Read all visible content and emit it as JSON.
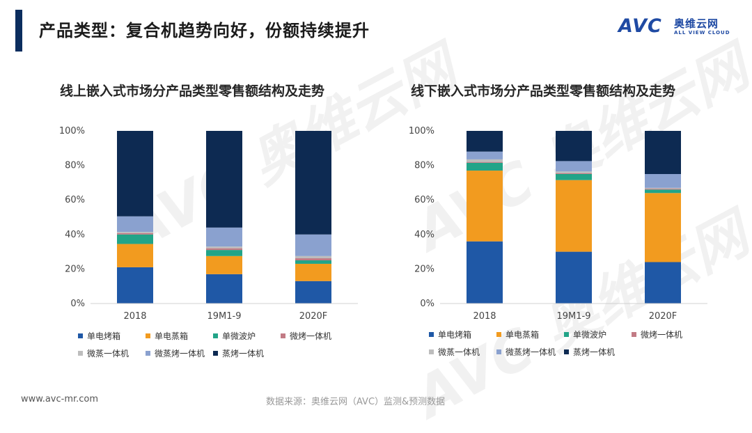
{
  "header": {
    "title": "产品类型：复合机趋势向好，份额持续提升",
    "logo_avc": "AVC",
    "logo_cn": "奥维云网",
    "logo_en": "ALL VIEW CLOUD"
  },
  "colors": {
    "单电烤箱": "#1f58a6",
    "单电蒸箱": "#f29b1f",
    "单微波炉": "#22a488",
    "微烤一体机": "#c27b85",
    "微蒸一体机": "#bdbdbd",
    "微蒸烤一体机": "#8aa1cf",
    "蒸烤一体机": "#0d2a52"
  },
  "legend": {
    "items": [
      "单电烤箱",
      "单电蒸箱",
      "单微波炉",
      "微烤一体机",
      "微蒸一体机",
      "微蒸烤一体机",
      "蒸烤一体机"
    ]
  },
  "chart_data": [
    {
      "type": "bar",
      "stacked": true,
      "title": "线上嵌入式市场分产品类型零售额结构及走势",
      "categories": [
        "2018",
        "19M1-9",
        "2020F"
      ],
      "ylim": [
        0,
        100
      ],
      "yticks": [
        "0%",
        "20%",
        "40%",
        "60%",
        "80%",
        "100%"
      ],
      "grid": false,
      "legend_position": "bottom",
      "series": [
        {
          "name": "单电烤箱",
          "values": [
            21,
            17,
            13
          ]
        },
        {
          "name": "单电蒸箱",
          "values": [
            13.5,
            10.5,
            10
          ]
        },
        {
          "name": "单微波炉",
          "values": [
            5.5,
            3.5,
            2
          ]
        },
        {
          "name": "微烤一体机",
          "values": [
            0.8,
            1,
            1.2
          ]
        },
        {
          "name": "微蒸一体机",
          "values": [
            0.7,
            1,
            1.3
          ]
        },
        {
          "name": "微蒸烤一体机",
          "values": [
            9,
            11,
            12.5
          ]
        },
        {
          "name": "蒸烤一体机",
          "values": [
            49.5,
            56,
            60
          ]
        }
      ]
    },
    {
      "type": "bar",
      "stacked": true,
      "title": "线下嵌入式市场分产品类型零售额结构及走势",
      "categories": [
        "2018",
        "19M1-9",
        "2020F"
      ],
      "ylim": [
        0,
        100
      ],
      "yticks": [
        "0%",
        "20%",
        "40%",
        "60%",
        "80%",
        "100%"
      ],
      "grid": false,
      "legend_position": "bottom",
      "series": [
        {
          "name": "单电烤箱",
          "values": [
            36,
            30,
            24
          ]
        },
        {
          "name": "单电蒸箱",
          "values": [
            41,
            41.5,
            40
          ]
        },
        {
          "name": "单微波炉",
          "values": [
            4.5,
            3.5,
            2
          ]
        },
        {
          "name": "微烤一体机",
          "values": [
            0.5,
            0.5,
            0.5
          ]
        },
        {
          "name": "微蒸一体机",
          "values": [
            1.5,
            1,
            0.5
          ]
        },
        {
          "name": "微蒸烤一体机",
          "values": [
            4.5,
            6,
            8
          ]
        },
        {
          "name": "蒸烤一体机",
          "values": [
            12,
            17.5,
            25
          ]
        }
      ]
    }
  ],
  "footer": {
    "url": "www.avc-mr.com",
    "source": "数据来源：奥维云网（AVC）监测&预测数据"
  }
}
